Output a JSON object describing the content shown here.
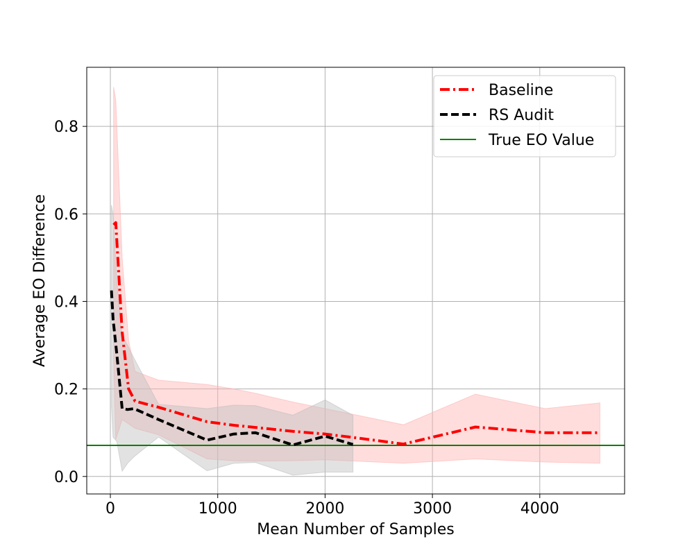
{
  "chart_data": {
    "type": "line",
    "xlabel": "Mean Number of Samples",
    "ylabel": "Average EO Difference",
    "xlim": [
      -220,
      4790
    ],
    "ylim": [
      -0.04,
      0.935
    ],
    "xticks": [
      0,
      1000,
      2000,
      3000,
      4000
    ],
    "yticks": [
      0.0,
      0.2,
      0.4,
      0.6,
      0.8
    ],
    "xtick_labels": [
      "0",
      "1000",
      "2000",
      "3000",
      "4000"
    ],
    "ytick_labels": [
      "0.0",
      "0.2",
      "0.4",
      "0.6",
      "0.8"
    ],
    "grid": true,
    "legend_position": "top-right",
    "hline": {
      "name": "True EO Value",
      "y": 0.071,
      "color": "#008000",
      "style": "solid"
    },
    "series": [
      {
        "name": "Baseline",
        "color": "#ff0000",
        "style": "dashdot",
        "band_color": "#ffb3b3",
        "x": [
          30,
          50,
          110,
          170,
          230,
          450,
          900,
          1150,
          1350,
          1700,
          2000,
          2300,
          2730,
          3400,
          4050,
          4560
        ],
        "y": [
          0.575,
          0.58,
          0.33,
          0.2,
          0.172,
          0.158,
          0.125,
          0.117,
          0.112,
          0.103,
          0.097,
          0.088,
          0.074,
          0.113,
          0.1,
          0.1
        ],
        "lower": [
          0.27,
          0.085,
          0.13,
          0.12,
          0.11,
          0.095,
          0.04,
          0.036,
          0.035,
          0.036,
          0.038,
          0.035,
          0.03,
          0.04,
          0.033,
          0.03
        ],
        "upper": [
          0.89,
          0.86,
          0.5,
          0.31,
          0.24,
          0.22,
          0.21,
          0.2,
          0.19,
          0.17,
          0.155,
          0.14,
          0.118,
          0.188,
          0.155,
          0.168
        ]
      },
      {
        "name": "RS Audit",
        "color": "#000000",
        "style": "dashed",
        "band_color": "#bfbfbf",
        "x": [
          10,
          25,
          60,
          110,
          160,
          220,
          450,
          900,
          1150,
          1350,
          1700,
          2000,
          2260
        ],
        "y": [
          0.425,
          0.36,
          0.28,
          0.155,
          0.153,
          0.155,
          0.13,
          0.083,
          0.097,
          0.1,
          0.072,
          0.092,
          0.073
        ],
        "lower": [
          0.16,
          0.09,
          0.08,
          0.012,
          0.03,
          0.045,
          0.09,
          0.013,
          0.03,
          0.032,
          0.003,
          0.01,
          0.01
        ],
        "upper": [
          0.62,
          0.6,
          0.45,
          0.32,
          0.3,
          0.27,
          0.165,
          0.155,
          0.163,
          0.162,
          0.14,
          0.175,
          0.14
        ]
      }
    ]
  }
}
